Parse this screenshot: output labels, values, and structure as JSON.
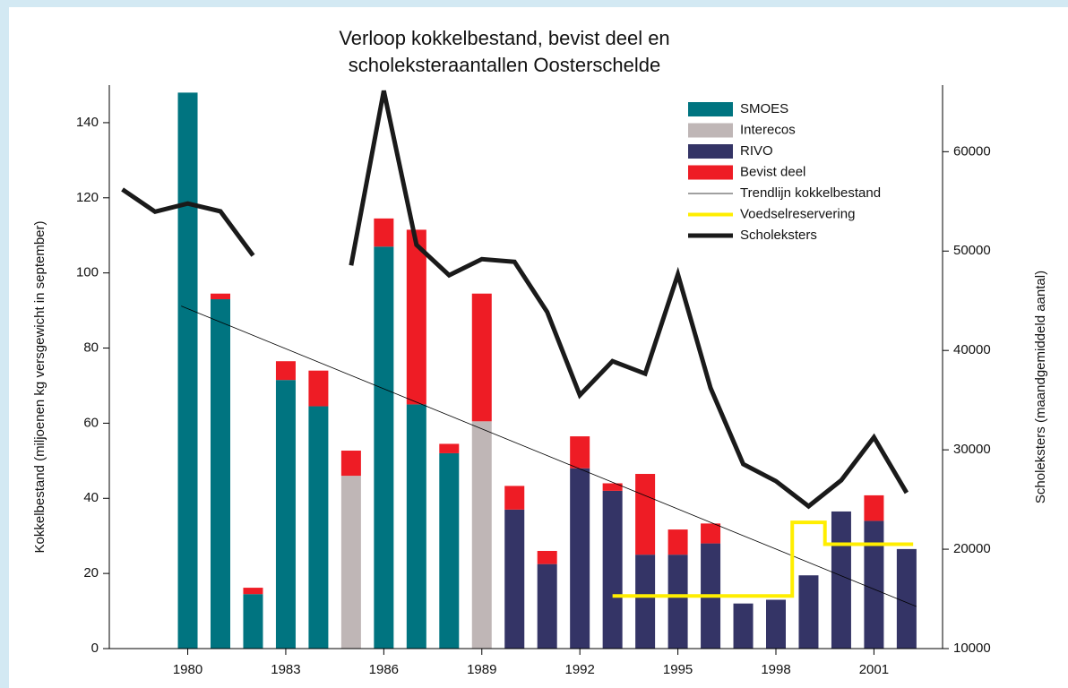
{
  "chart_data": {
    "type": "bar",
    "title": [
      "Verloop kokkelbestand, bevist deel en",
      "scholeksteraantallen Oosterschelde"
    ],
    "ylabel": "Kokkelbestand (miljoenen kg versgewicht in september)",
    "y2label": "Scholeksters (maandgemiddeld aantal)",
    "x": [
      1980,
      1981,
      1982,
      1983,
      1984,
      1985,
      1986,
      1987,
      1988,
      1989,
      1990,
      1991,
      1992,
      1993,
      1994,
      1995,
      1996,
      1997,
      1998,
      1999,
      2000,
      2001,
      2002
    ],
    "xlim": [
      1977.6,
      2003.1
    ],
    "xticks": [
      1980,
      1983,
      1986,
      1989,
      1992,
      1995,
      1998,
      2001
    ],
    "ylim": [
      0,
      150
    ],
    "yticks": [
      0,
      20,
      40,
      60,
      80,
      100,
      120,
      140
    ],
    "y2lim": [
      10000,
      66700
    ],
    "y2ticks": [
      10000,
      20000,
      30000,
      40000,
      50000,
      60000
    ],
    "legend": "upper right",
    "stacked": true,
    "series": [
      {
        "name": "SMOES",
        "type": "bar",
        "color": "#007480",
        "values": [
          148,
          93,
          14.5,
          71.5,
          64.5,
          null,
          107,
          65,
          52,
          null,
          null,
          null,
          null,
          null,
          null,
          null,
          null,
          null,
          null,
          null,
          null,
          null,
          null
        ]
      },
      {
        "name": "Interecos",
        "type": "bar",
        "color": "#bfb6b6",
        "values": [
          null,
          null,
          null,
          null,
          null,
          46,
          null,
          null,
          null,
          60.5,
          null,
          null,
          null,
          null,
          null,
          null,
          null,
          null,
          null,
          null,
          null,
          null,
          null
        ]
      },
      {
        "name": "RIVO",
        "type": "bar",
        "color": "#343466",
        "values": [
          null,
          null,
          null,
          null,
          null,
          null,
          null,
          null,
          null,
          null,
          37,
          22.5,
          48,
          42,
          25,
          25,
          28,
          12,
          13,
          19.5,
          36.5,
          34,
          26.5
        ]
      },
      {
        "name": "Bevist deel",
        "type": "bar",
        "color": "#ee1c25",
        "values": [
          null,
          1.5,
          1.7,
          5,
          9.5,
          6.7,
          7.5,
          46.5,
          2.5,
          34,
          6.3,
          3.5,
          8.5,
          2,
          21.5,
          6.7,
          5.3,
          null,
          null,
          null,
          null,
          6.8,
          null
        ]
      },
      {
        "name": "Trendlijn kokkelbestand",
        "type": "line",
        "color": "#000000",
        "width": 0.8,
        "x": [
          1979.8,
          2002.3
        ],
        "values": [
          91.2,
          11.2
        ]
      },
      {
        "name": "Voedselreservering",
        "type": "line",
        "color": "#ffee00",
        "width": 4,
        "axis": "y2",
        "x": [
          1993,
          1998.5,
          1998.5,
          1999.5,
          1999.5,
          2002.2
        ],
        "values": [
          15300,
          15300,
          22700,
          22700,
          20500,
          20500
        ]
      },
      {
        "name": "Scholeksters",
        "type": "line",
        "color": "#1a1a1a",
        "width": 5,
        "axis": "y2",
        "x": [
          1978,
          1979,
          1980,
          1981,
          1982,
          1983,
          1984,
          1985,
          1986,
          1987,
          1988,
          1989,
          1990,
          1991,
          1992,
          1993,
          1994,
          1995,
          1996,
          1997,
          1998,
          1999,
          2000,
          2001,
          2002
        ],
        "values": [
          56200,
          53960,
          54780,
          54000,
          49550,
          null,
          null,
          48560,
          66130,
          50630,
          47570,
          49190,
          48920,
          43870,
          35500,
          38920,
          37660,
          47660,
          36220,
          28560,
          26850,
          24320,
          26940,
          31260,
          25680
        ]
      }
    ]
  }
}
